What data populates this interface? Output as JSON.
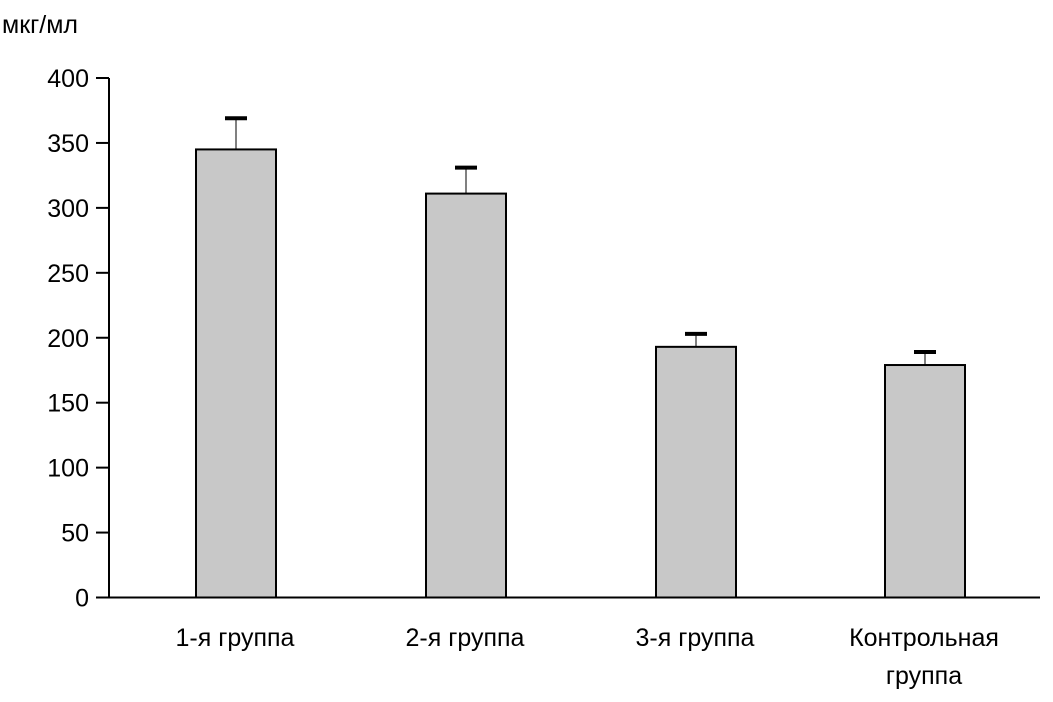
{
  "chart_data": {
    "type": "bar",
    "title": "",
    "ylabel": "мкг/мл",
    "xlabel": "",
    "ylim": [
      0,
      400
    ],
    "yticks": [
      0,
      50,
      100,
      150,
      200,
      250,
      300,
      350,
      400
    ],
    "categories": [
      [
        "1-я группа"
      ],
      [
        "2-я группа"
      ],
      [
        "3-я группа"
      ],
      [
        "Контрольная",
        "группа"
      ]
    ],
    "values": [
      345,
      311,
      193,
      179
    ],
    "errors": [
      24,
      20,
      10,
      10
    ],
    "bar_color": "#c8c8c8",
    "grid": false,
    "legend": "none"
  }
}
